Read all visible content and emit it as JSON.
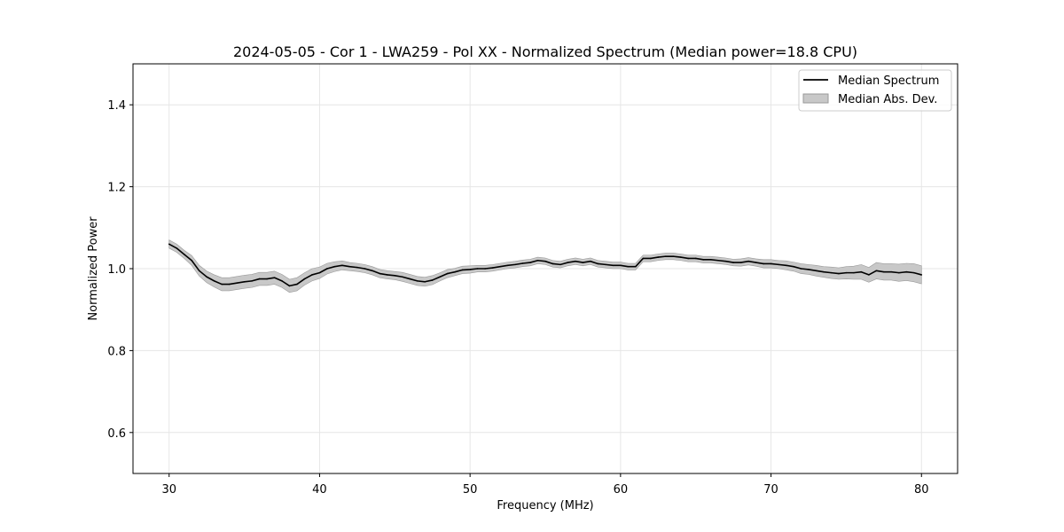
{
  "chart_data": {
    "type": "line",
    "title": "2024-05-05 - Cor 1 - LWA259 - Pol XX - Normalized Spectrum (Median power=18.8 CPU)",
    "xlabel": "Frequency (MHz)",
    "ylabel": "Normalized Power",
    "xlim": [
      27.6,
      82.4
    ],
    "ylim": [
      0.5,
      1.5
    ],
    "xticks": [
      30,
      40,
      50,
      60,
      70,
      80
    ],
    "yticks": [
      0.6,
      0.8,
      1.0,
      1.2,
      1.4
    ],
    "xtick_labels": [
      "30",
      "40",
      "50",
      "60",
      "70",
      "80"
    ],
    "ytick_labels": [
      "0.6",
      "0.8",
      "1.0",
      "1.2",
      "1.4"
    ],
    "grid": true,
    "legend_position": "top-right",
    "legend": {
      "line_label": "Median Spectrum",
      "band_label": "Median Abs. Dev."
    },
    "colors": {
      "line": "#000000",
      "band": "#c8c8c8",
      "band_edge": "#9a9a9a",
      "grid": "#e6e6e6"
    },
    "series": [
      {
        "name": "Median Spectrum",
        "x": [
          30.0,
          30.5,
          31.0,
          31.5,
          32.0,
          32.5,
          33.0,
          33.5,
          34.0,
          34.5,
          35.0,
          35.5,
          36.0,
          36.5,
          37.0,
          37.5,
          38.0,
          38.5,
          39.0,
          39.5,
          40.0,
          40.5,
          41.0,
          41.5,
          42.0,
          42.5,
          43.0,
          43.5,
          44.0,
          44.5,
          45.0,
          45.5,
          46.0,
          46.5,
          47.0,
          47.5,
          48.0,
          48.5,
          49.0,
          49.5,
          50.0,
          50.5,
          51.0,
          51.5,
          52.0,
          52.5,
          53.0,
          53.5,
          54.0,
          54.5,
          55.0,
          55.5,
          56.0,
          56.5,
          57.0,
          57.5,
          58.0,
          58.5,
          59.0,
          59.5,
          60.0,
          60.5,
          61.0,
          61.5,
          62.0,
          62.5,
          63.0,
          63.5,
          64.0,
          64.5,
          65.0,
          65.5,
          66.0,
          66.5,
          67.0,
          67.5,
          68.0,
          68.5,
          69.0,
          69.5,
          70.0,
          70.5,
          71.0,
          71.5,
          72.0,
          72.5,
          73.0,
          73.5,
          74.0,
          74.5,
          75.0,
          75.5,
          76.0,
          76.5,
          77.0,
          77.5,
          78.0,
          78.5,
          79.0,
          79.5,
          80.0
        ],
        "values": [
          1.06,
          1.05,
          1.035,
          1.02,
          0.995,
          0.98,
          0.97,
          0.962,
          0.962,
          0.965,
          0.968,
          0.97,
          0.975,
          0.975,
          0.978,
          0.97,
          0.958,
          0.962,
          0.975,
          0.985,
          0.99,
          1.0,
          1.005,
          1.008,
          1.005,
          1.003,
          1.0,
          0.995,
          0.988,
          0.985,
          0.983,
          0.98,
          0.975,
          0.97,
          0.968,
          0.972,
          0.98,
          0.988,
          0.992,
          0.997,
          0.998,
          1.0,
          1.0,
          1.002,
          1.005,
          1.008,
          1.01,
          1.013,
          1.015,
          1.02,
          1.018,
          1.012,
          1.01,
          1.015,
          1.018,
          1.015,
          1.018,
          1.012,
          1.01,
          1.008,
          1.008,
          1.005,
          1.005,
          1.025,
          1.025,
          1.028,
          1.03,
          1.03,
          1.028,
          1.025,
          1.025,
          1.022,
          1.022,
          1.02,
          1.018,
          1.015,
          1.015,
          1.018,
          1.015,
          1.012,
          1.012,
          1.01,
          1.008,
          1.005,
          1.0,
          0.998,
          0.995,
          0.992,
          0.99,
          0.988,
          0.99,
          0.99,
          0.992,
          0.985,
          0.995,
          0.992,
          0.992,
          0.99,
          0.992,
          0.99,
          0.985
        ],
        "mad": [
          0.01,
          0.01,
          0.01,
          0.012,
          0.013,
          0.014,
          0.015,
          0.016,
          0.016,
          0.016,
          0.016,
          0.016,
          0.016,
          0.016,
          0.016,
          0.016,
          0.016,
          0.016,
          0.015,
          0.015,
          0.014,
          0.013,
          0.012,
          0.011,
          0.01,
          0.01,
          0.01,
          0.01,
          0.01,
          0.01,
          0.01,
          0.011,
          0.011,
          0.011,
          0.011,
          0.011,
          0.01,
          0.01,
          0.009,
          0.009,
          0.009,
          0.008,
          0.008,
          0.008,
          0.008,
          0.008,
          0.008,
          0.008,
          0.008,
          0.008,
          0.008,
          0.008,
          0.008,
          0.008,
          0.008,
          0.008,
          0.008,
          0.008,
          0.008,
          0.008,
          0.008,
          0.008,
          0.008,
          0.008,
          0.008,
          0.008,
          0.008,
          0.008,
          0.008,
          0.008,
          0.008,
          0.008,
          0.008,
          0.008,
          0.008,
          0.008,
          0.009,
          0.009,
          0.009,
          0.01,
          0.01,
          0.01,
          0.011,
          0.011,
          0.012,
          0.012,
          0.013,
          0.013,
          0.014,
          0.014,
          0.015,
          0.016,
          0.018,
          0.018,
          0.02,
          0.02,
          0.02,
          0.021,
          0.021,
          0.022,
          0.022
        ]
      }
    ]
  }
}
